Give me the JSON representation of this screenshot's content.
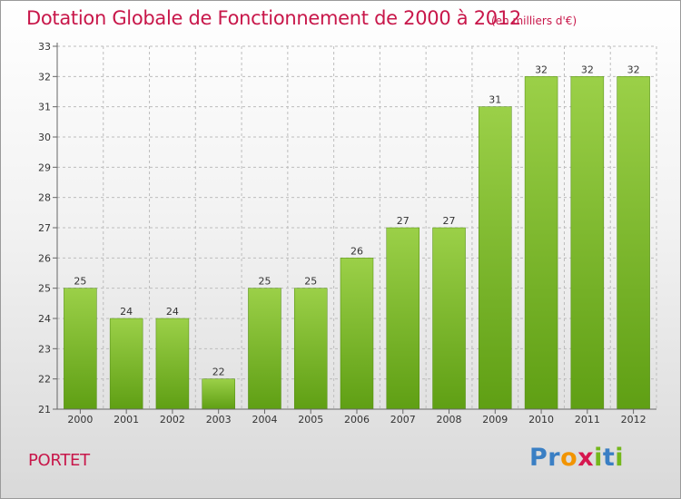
{
  "header": {
    "title": "Dotation Globale de Fonctionnement de 2000 à 2012",
    "subtitle": "(en milliers d'€)"
  },
  "footer": {
    "commune": "PORTET",
    "logo": {
      "text": "Proxiti",
      "letters": [
        {
          "char": "P",
          "color": "#3a7fc4"
        },
        {
          "char": "r",
          "color": "#3a7fc4"
        },
        {
          "char": "o",
          "color": "#f29400"
        },
        {
          "char": "x",
          "color": "#d6174f"
        },
        {
          "char": "i",
          "color": "#74b71b"
        },
        {
          "char": "t",
          "color": "#3a7fc4"
        },
        {
          "char": "i",
          "color": "#74b71b"
        }
      ]
    }
  },
  "colors": {
    "title": "#c8174a",
    "bar_top": "#9bd048",
    "bar_bottom": "#5f9f14",
    "grid": "#bdbdbd",
    "axis": "#666666"
  },
  "chart_data": {
    "type": "bar",
    "categories": [
      "2000",
      "2001",
      "2002",
      "2003",
      "2004",
      "2005",
      "2006",
      "2007",
      "2008",
      "2009",
      "2010",
      "2011",
      "2012"
    ],
    "values": [
      25,
      24,
      24,
      22,
      25,
      25,
      26,
      27,
      27,
      31,
      32,
      32,
      32
    ],
    "data_labels": [
      "25",
      "24",
      "24",
      "22",
      "25",
      "25",
      "26",
      "27",
      "27",
      "31",
      "32",
      "32",
      "32"
    ],
    "yticks": [
      21,
      22,
      23,
      24,
      25,
      26,
      27,
      28,
      29,
      30,
      31,
      32,
      33
    ],
    "ylim": [
      21,
      33
    ],
    "grid": true
  }
}
